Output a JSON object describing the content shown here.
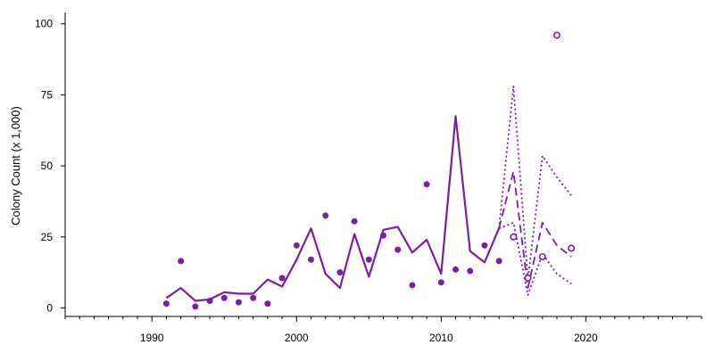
{
  "chart_data": {
    "type": "line",
    "ylabel": "Colony Count (x 1,000)",
    "xlabel": "",
    "title": "",
    "xlim": [
      1984,
      2028
    ],
    "ylim": [
      -3,
      104
    ],
    "x_ticks": [
      1990,
      2000,
      2010,
      2020
    ],
    "y_ticks": [
      0,
      25,
      50,
      75,
      100
    ],
    "grid": false,
    "color": "#7B1FA2",
    "series": [
      {
        "style": "solid",
        "x": [
          1991,
          1992,
          1993,
          1994,
          1995,
          1996,
          1997,
          1998,
          1999,
          2000,
          2001,
          2002,
          2003,
          2004,
          2005,
          2006,
          2007,
          2008,
          2009,
          2010,
          2011,
          2012,
          2013,
          2014
        ],
        "y": [
          3.5,
          7,
          2.5,
          3,
          5.5,
          5,
          5,
          10,
          7.5,
          17,
          28,
          12,
          7,
          26,
          11,
          27.5,
          28.5,
          19.5,
          24,
          12,
          67.5,
          20,
          16,
          28
        ]
      },
      {
        "style": "dotted",
        "x": [
          2014,
          2015,
          2016,
          2017,
          2018,
          2019
        ],
        "y": [
          28,
          78,
          10,
          53.5,
          46,
          39.5
        ]
      },
      {
        "style": "dashed",
        "x": [
          2014,
          2015,
          2016,
          2017,
          2018,
          2019
        ],
        "y": [
          28,
          48,
          7,
          30,
          22,
          18
        ]
      },
      {
        "style": "dotted",
        "x": [
          2014,
          2015,
          2016,
          2017,
          2018,
          2019
        ],
        "y": [
          28,
          30,
          4.5,
          19,
          12,
          8.5
        ]
      },
      {
        "style": "points",
        "x": [
          1991,
          1992,
          1993,
          1994,
          1995,
          1996,
          1997,
          1998,
          1999,
          2000,
          2001,
          2002,
          2003,
          2004,
          2005,
          2006,
          2007,
          2008,
          2009,
          2010,
          2011,
          2012,
          2013,
          2014
        ],
        "y": [
          1.5,
          16.5,
          0.5,
          2.5,
          3.5,
          2,
          3.5,
          1.5,
          10.5,
          22,
          17,
          32.5,
          12.5,
          30.5,
          17,
          25.5,
          20.5,
          8,
          43.5,
          9,
          13.5,
          13,
          22,
          16.5
        ]
      },
      {
        "style": "open-points",
        "x": [
          2015,
          2016,
          2017,
          2018,
          2019
        ],
        "y": [
          25,
          10.5,
          18,
          96,
          21
        ]
      }
    ]
  }
}
